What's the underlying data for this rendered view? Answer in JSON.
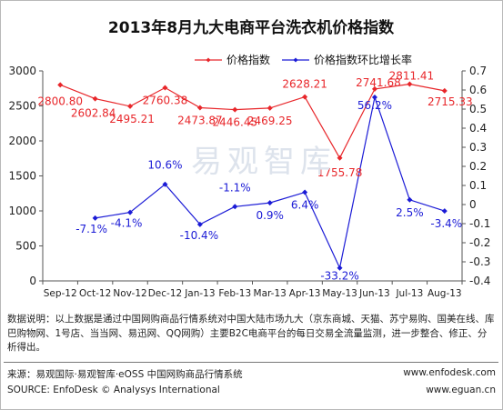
{
  "chart_data": {
    "type": "line",
    "title": "2013年8月九大电商平台洗衣机价格指数",
    "categories": [
      "Sep-12",
      "Oct-12",
      "Nov-12",
      "Dec-12",
      "Jan-13",
      "Feb-13",
      "Mar-13",
      "Apr-13",
      "May-13",
      "Jun-13",
      "Jul-13",
      "Aug-13"
    ],
    "series": [
      {
        "name": "价格指数",
        "axis": "left",
        "color": "#e8262a",
        "values": [
          2800.8,
          2602.84,
          2495.21,
          2760.38,
          2473.87,
          2446.45,
          2469.25,
          2628.21,
          1755.78,
          2741.68,
          2811.41,
          2715.33
        ],
        "labels": [
          "2800.80",
          "2602.84",
          "2495.21",
          "2760.38",
          "2473.87",
          "2446.45",
          "2469.25",
          "2628.21",
          "1755.78",
          "2741.68",
          "2811.41",
          "2715.33"
        ]
      },
      {
        "name": "价格指数环比增长率",
        "axis": "right",
        "color": "#1b1bd6",
        "values": [
          null,
          -0.071,
          -0.041,
          0.106,
          -0.104,
          -0.011,
          0.009,
          0.064,
          -0.332,
          0.562,
          0.025,
          -0.034
        ],
        "labels": [
          "",
          "-7.1%",
          "-4.1%",
          "10.6%",
          "-10.4%",
          "-1.1%",
          "0.9%",
          "6.4%",
          "-33.2%",
          "56.2%",
          "2.5%",
          "-3.4%"
        ]
      }
    ],
    "ylim_left": [
      0,
      3000
    ],
    "yticks_left": [
      "0",
      "500",
      "1000",
      "1500",
      "2000",
      "2500",
      "3000"
    ],
    "ylim_right": [
      -0.4,
      0.7
    ],
    "yticks_right": [
      "-0.4",
      "-0.3",
      "-0.2",
      "-0.1",
      "0",
      "0.1",
      "0.2",
      "0.3",
      "0.4",
      "0.5",
      "0.6",
      "0.7"
    ],
    "grid": false,
    "legend": "top-right"
  },
  "watermark": "易观智库",
  "note": "数据说明：以上数据是通过中国网购商品行情系统对中国大陆市场九大（京东商城、天猫、苏宁易购、国美在线、库巴购物网、1号店、当当网、易迅网、QQ网购）主要B2C电商平台的每日交易全流量监测，进一步整合、修正、分析得出。",
  "footer": {
    "source_cn": "来源：易观国际·易观智库·eOSS 中国网购商品行情系统",
    "source_en": "SOURCE: EnfoDesk © Analysys International",
    "url1": "www.enfodesk.com",
    "url2": "www.eguan.cn"
  }
}
